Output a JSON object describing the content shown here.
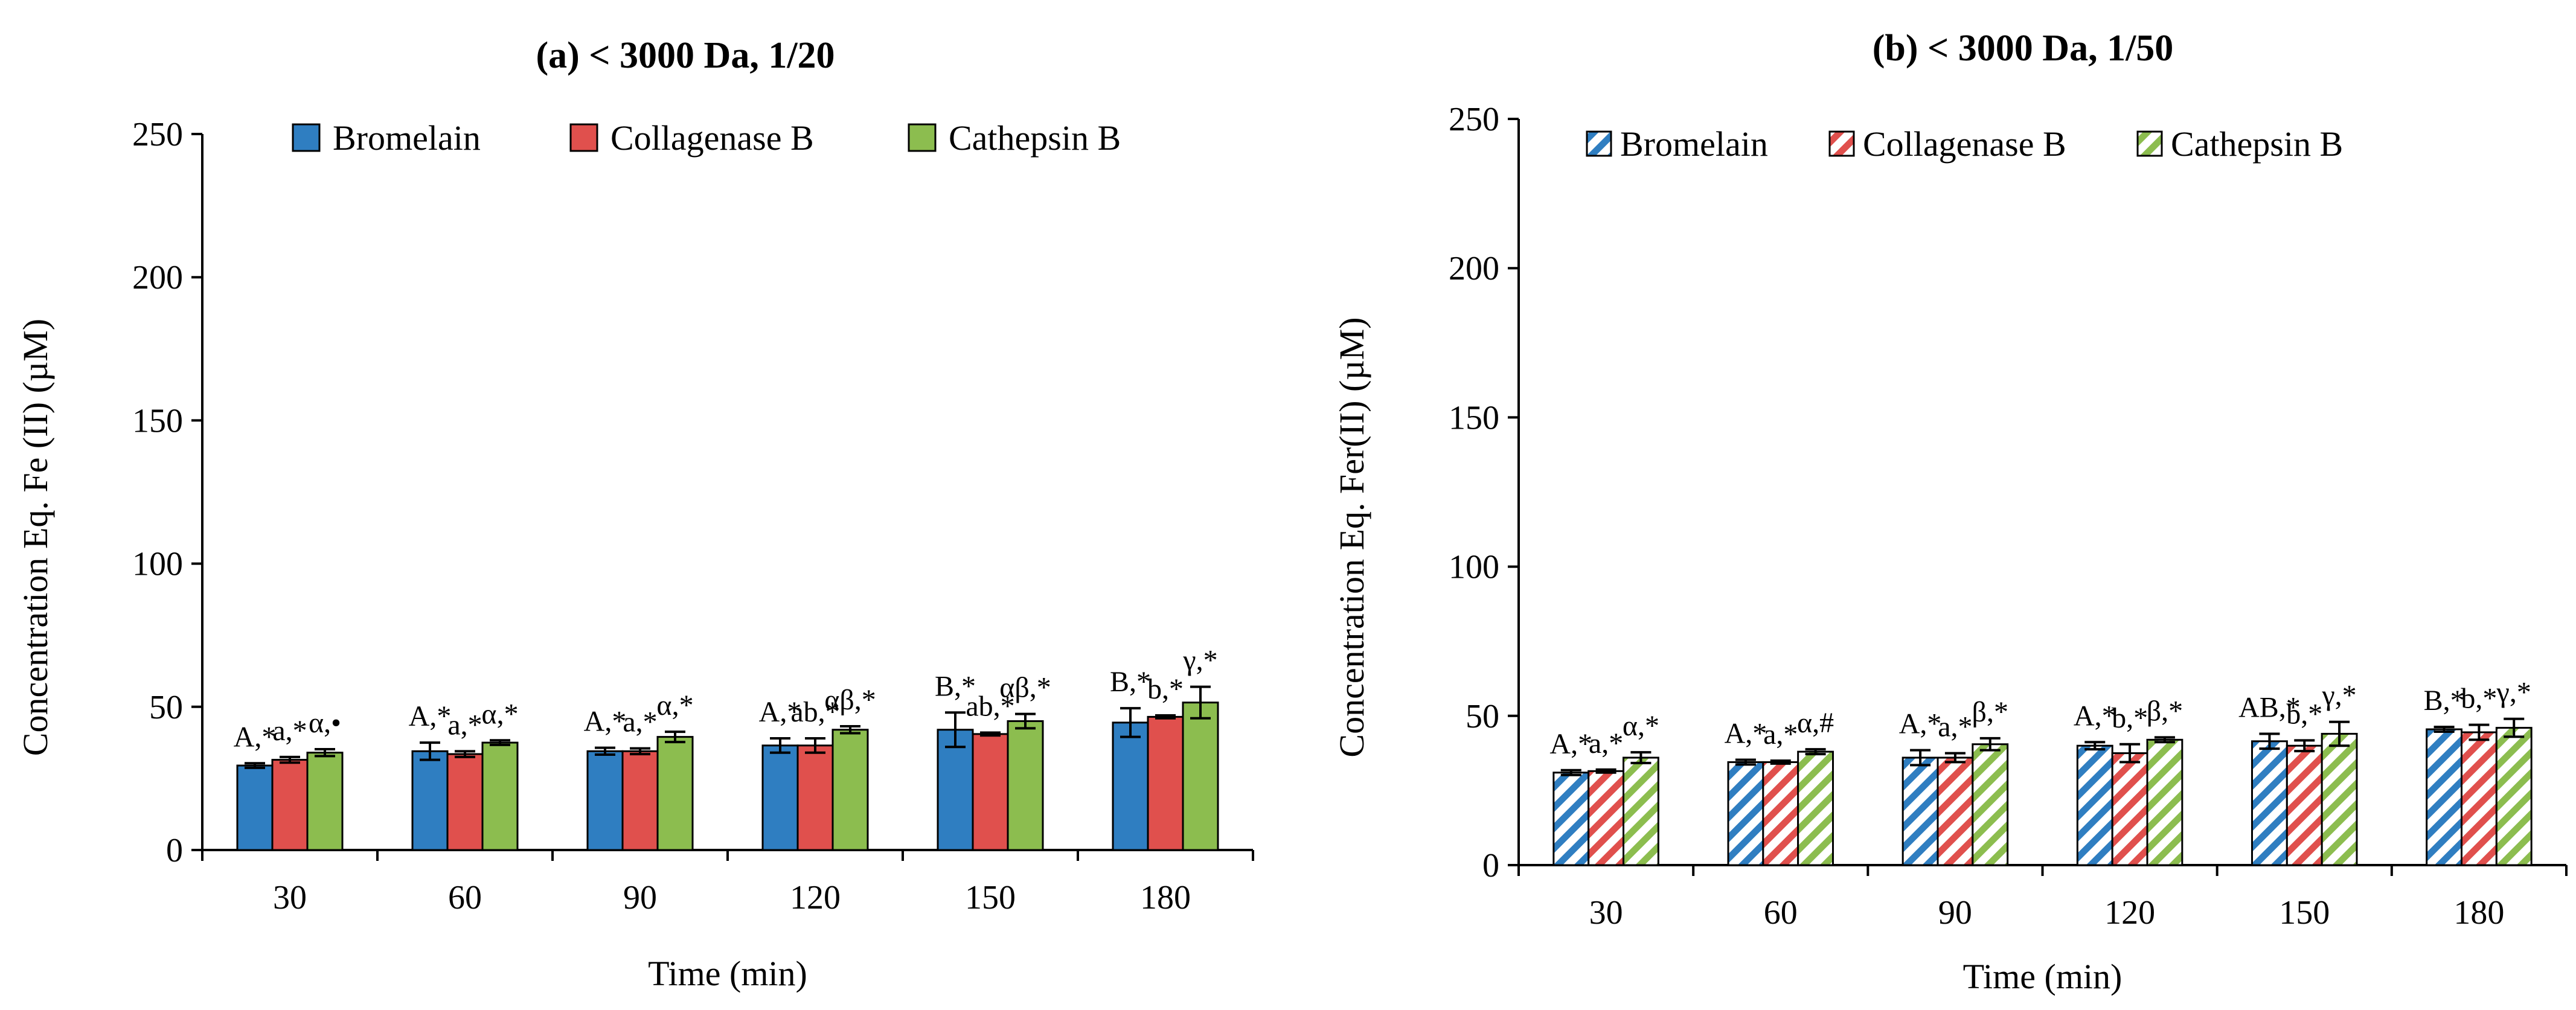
{
  "colors": {
    "bromelain": "#2F7EC1",
    "collagenase": "#E0504D",
    "cathepsin": "#8CBD4F",
    "axis": "#000000",
    "hatch_bg": "#ffffff"
  },
  "chart_data": [
    {
      "type": "bar",
      "title": "(a)  < 3000 Da, 1/20",
      "xlabel": "Time (min)",
      "ylabel": "Concentration Eq.  Fe (II) (µM)",
      "ylim": [
        0,
        250
      ],
      "yticks": [
        0,
        50,
        100,
        150,
        200,
        250
      ],
      "grid": false,
      "style": "solid",
      "legend_position": "top",
      "categories": [
        "30",
        "60",
        "90",
        "120",
        "150",
        "180"
      ],
      "series": [
        {
          "name": "Bromelain",
          "color_key": "bromelain",
          "values": [
            29.5,
            34.5,
            34.5,
            36.5,
            42,
            44.5
          ],
          "errors": [
            0.8,
            3,
            1.2,
            2.5,
            6,
            5
          ],
          "labels": [
            "A,*",
            "A,*",
            "A,*",
            "A,*",
            "B,*",
            "B,*"
          ]
        },
        {
          "name": "Collagenase B",
          "color_key": "collagenase",
          "values": [
            31.5,
            33.5,
            34.5,
            36.5,
            40.5,
            46.5
          ],
          "errors": [
            1,
            1,
            1,
            2.5,
            0.5,
            0.5
          ],
          "labels": [
            "a,*",
            "a,*",
            "a,*",
            "ab,*",
            "ab,*",
            "b,*"
          ]
        },
        {
          "name": "Cathepsin B",
          "color_key": "cathepsin",
          "values": [
            34,
            37.5,
            39.5,
            42,
            45,
            51.5
          ],
          "errors": [
            1.2,
            0.8,
            1.8,
            1.2,
            2.5,
            5.5
          ],
          "labels": [
            "α,•",
            "α,*",
            "α,*",
            "αβ,*",
            "αβ,*",
            "γ,*"
          ]
        }
      ]
    },
    {
      "type": "bar",
      "title": "(b)  < 3000 Da,  1/50",
      "xlabel": "Time (min)",
      "ylabel": "Concentration Eq.  Fer(II) (µM)",
      "ylim": [
        0,
        250
      ],
      "yticks": [
        0,
        50,
        100,
        150,
        200,
        250
      ],
      "grid": false,
      "style": "hatched",
      "legend_position": "top",
      "categories": [
        "30",
        "60",
        "90",
        "120",
        "150",
        "180"
      ],
      "series": [
        {
          "name": "Bromelain",
          "color_key": "bromelain",
          "values": [
            31,
            34.5,
            36,
            40,
            41.5,
            45.5
          ],
          "errors": [
            0.8,
            0.8,
            2.5,
            1.2,
            2.5,
            0.8
          ],
          "labels": [
            "A,*",
            "A,*",
            "A,*",
            "A,*",
            "AB,*",
            "B,*"
          ]
        },
        {
          "name": "Collagenase B",
          "color_key": "collagenase",
          "values": [
            31.5,
            34.5,
            36,
            37.5,
            40,
            44.5
          ],
          "errors": [
            0.5,
            0.5,
            1.5,
            3,
            1.8,
            2.5
          ],
          "labels": [
            "a,*",
            "a,*",
            "a,*",
            "b,*",
            "b,*",
            "b,*"
          ]
        },
        {
          "name": "Cathepsin B",
          "color_key": "cathepsin",
          "values": [
            36,
            38,
            40.5,
            42,
            44,
            46
          ],
          "errors": [
            1.8,
            0.8,
            2,
            0.8,
            4,
            3
          ],
          "labels": [
            "α,*",
            "α,#",
            "β,*",
            "β,*",
            "γ,*",
            "γ,*"
          ]
        }
      ]
    }
  ]
}
